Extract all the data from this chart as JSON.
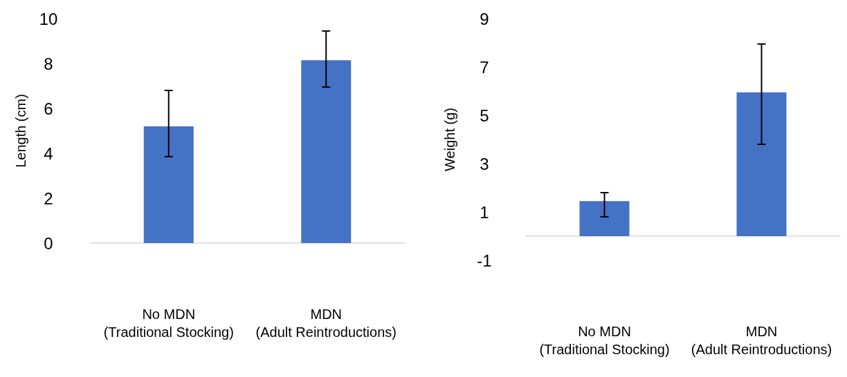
{
  "chart_data": [
    {
      "type": "bar",
      "ylabel": "Length (cm)",
      "categories": [
        "No MDN (Traditional Stocking)",
        "MDN (Adult Reintroductions)"
      ],
      "values": [
        5.2,
        8.15
      ],
      "color": "#4472c4",
      "errors": [
        [
          3.85,
          6.8
        ],
        [
          6.95,
          9.45
        ]
      ],
      "ylim": [
        0,
        10
      ],
      "yticks": [
        0,
        2,
        4,
        6,
        8,
        10
      ]
    },
    {
      "type": "bar",
      "ylabel": "Weight (g)",
      "categories": [
        "No MDN (Traditional Stocking)",
        "MDN (Adult Reintroductions)"
      ],
      "values": [
        1.45,
        5.95
      ],
      "color": "#4472c4",
      "errors": [
        [
          0.8,
          1.8
        ],
        [
          3.8,
          7.95
        ]
      ],
      "ylim": [
        -1,
        9
      ],
      "yticks": [
        -1,
        1,
        3,
        5,
        7,
        9
      ]
    }
  ]
}
